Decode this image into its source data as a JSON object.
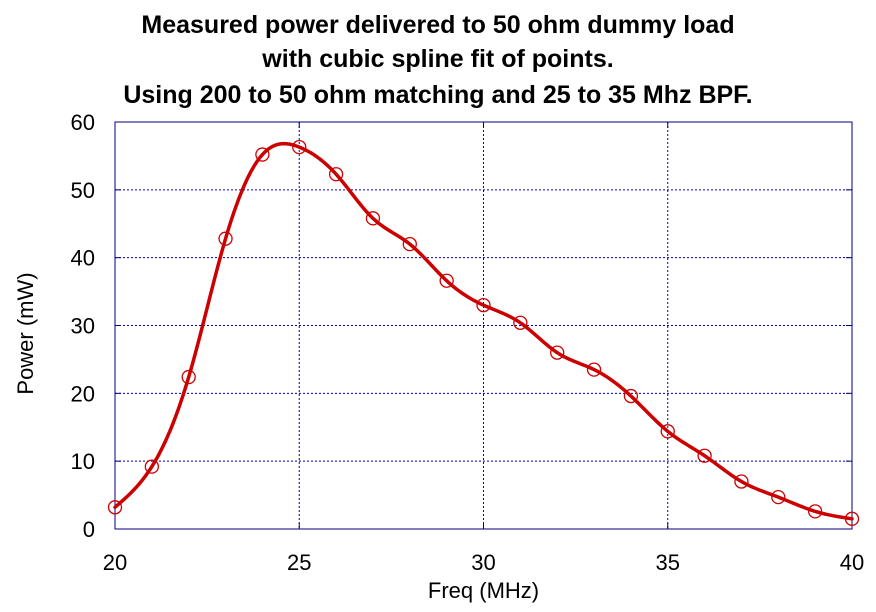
{
  "chart_data": {
    "type": "scatter",
    "title_lines": [
      "Measured power delivered to 50 ohm dummy load",
      "with cubic spline fit of points.",
      "Using 200 to 50 ohm matching and 25 to 35 Mhz BPF."
    ],
    "xlabel": "Freq (MHz)",
    "ylabel": "Power (mW)",
    "xlim": [
      20,
      40
    ],
    "ylim": [
      0,
      60
    ],
    "xticks": [
      20,
      25,
      30,
      35,
      40
    ],
    "yticks": [
      0,
      10,
      20,
      30,
      40,
      50,
      60
    ],
    "grid": true,
    "series": [
      {
        "marker": "open-circle",
        "color": "#cc0000",
        "x": [
          20,
          21,
          22,
          23,
          24,
          25,
          26,
          27,
          28,
          29,
          30,
          31,
          32,
          33,
          34,
          35,
          36,
          37,
          38,
          39,
          40
        ],
        "y": [
          3.2,
          9.2,
          22.4,
          42.8,
          55.2,
          56.3,
          52.3,
          45.8,
          42.0,
          36.6,
          33.0,
          30.4,
          26.0,
          23.5,
          19.6,
          14.4,
          10.8,
          7.0,
          4.7,
          2.6,
          1.5
        ]
      },
      {
        "style": "smooth-line",
        "color": "#cc0000",
        "fit": "cubic spline"
      }
    ],
    "colors": {
      "grid": "#0000aa",
      "frame": "#000080",
      "data": "#cc0000"
    }
  }
}
